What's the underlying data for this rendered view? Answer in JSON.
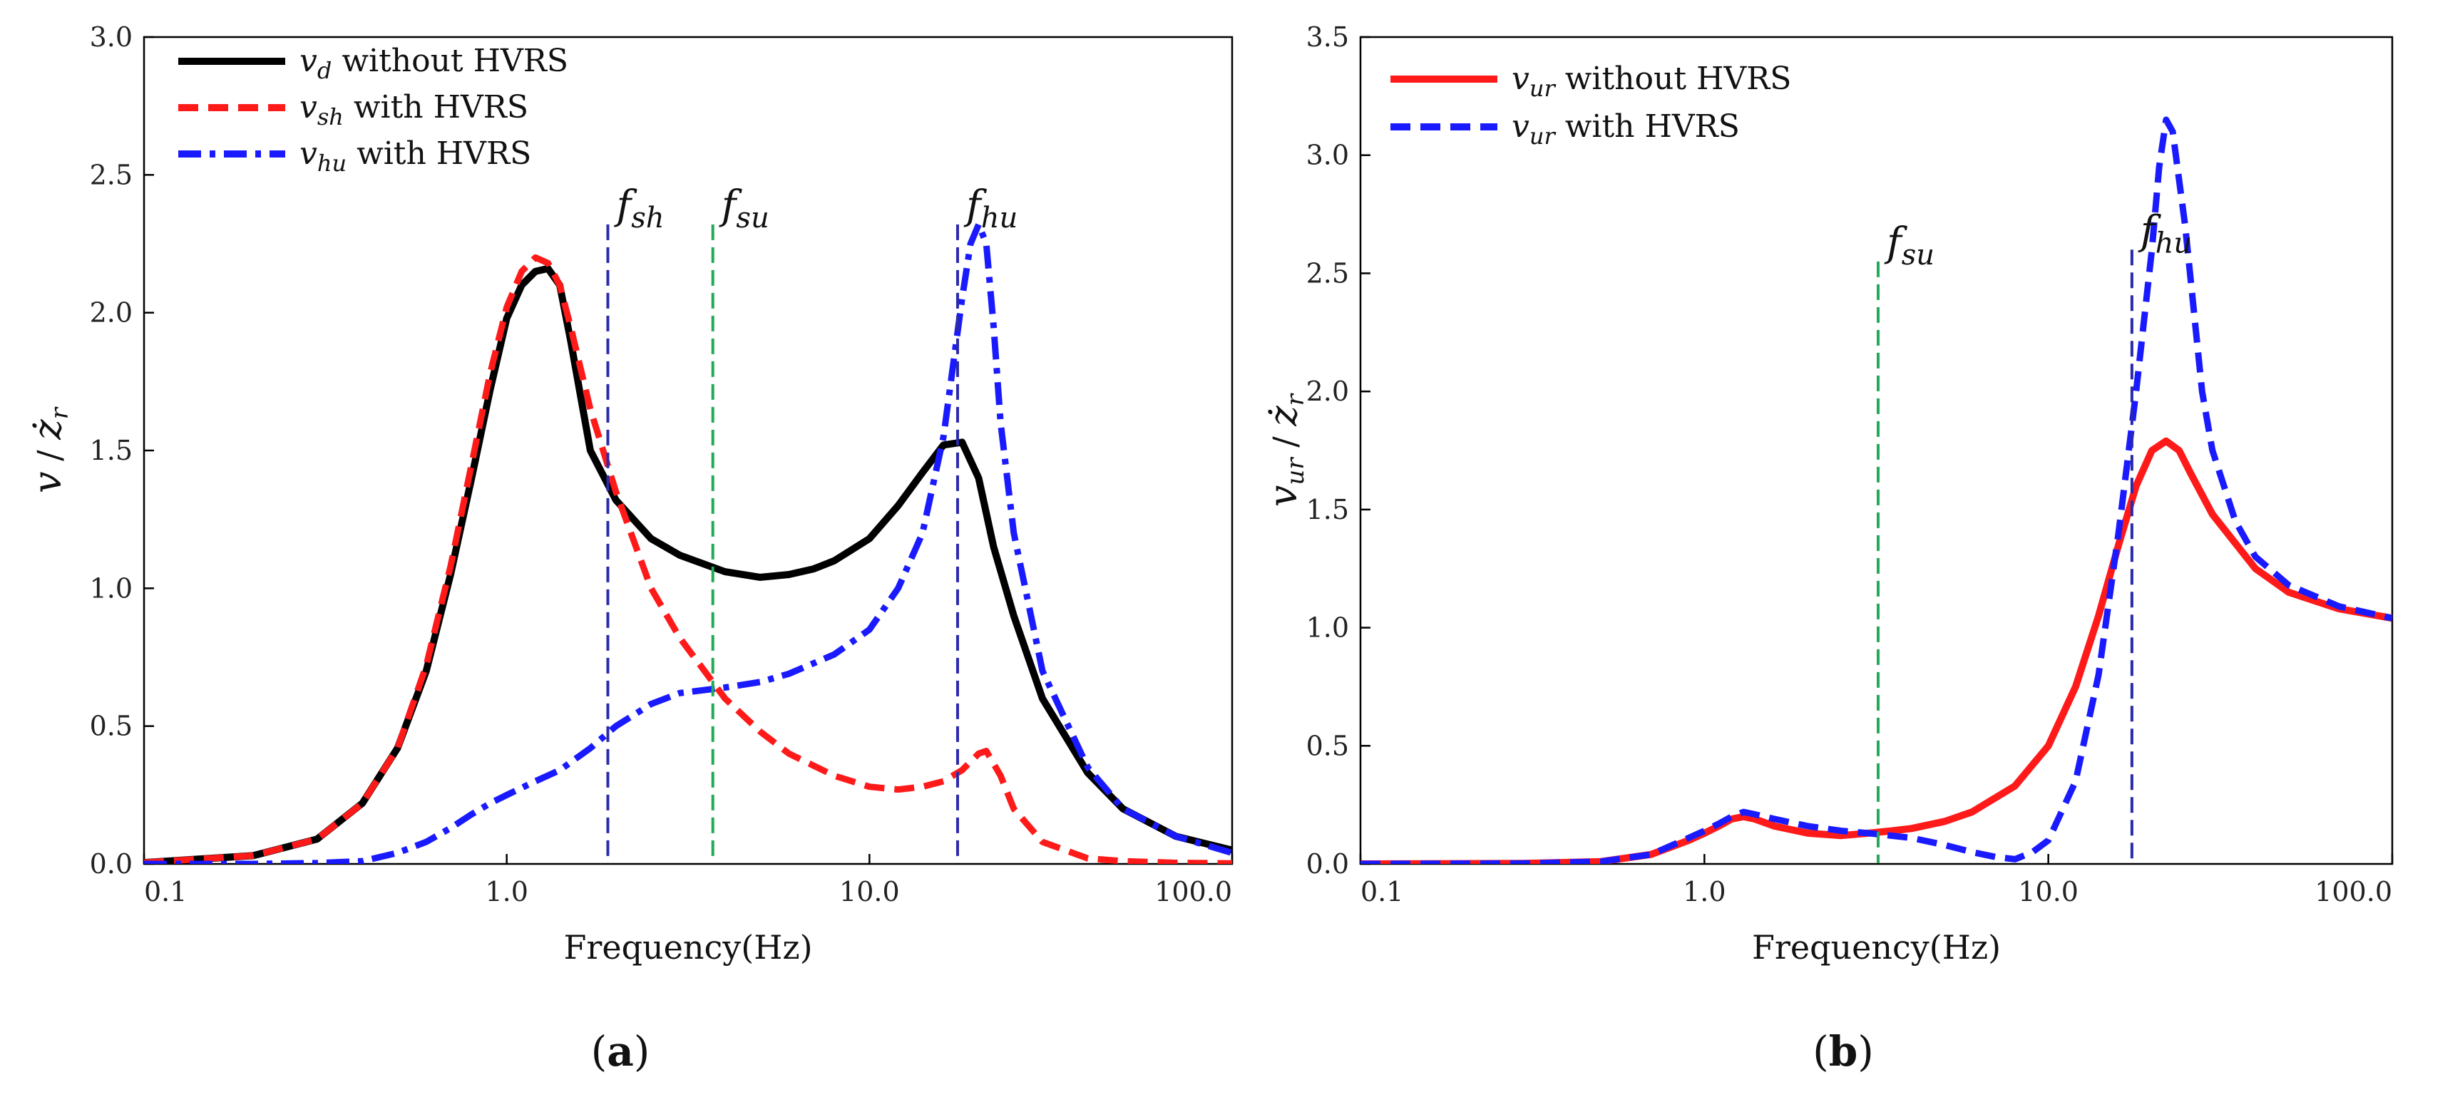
{
  "chart_data": [
    {
      "type": "line",
      "panel_label": "(a)",
      "panel_letter": "a",
      "xscale": "log",
      "xlim": [
        0.1,
        100.0
      ],
      "ylim": [
        0.0,
        3.0
      ],
      "xticks": [
        0.1,
        1.0,
        10.0,
        100.0
      ],
      "xtick_labels": [
        "0.1",
        "1.0",
        "10.0",
        "100.0"
      ],
      "yticks": [
        0.0,
        0.5,
        1.0,
        1.5,
        2.0,
        2.5,
        3.0
      ],
      "ytick_labels": [
        "0.0",
        "0.5",
        "1.0",
        "1.5",
        "2.0",
        "2.5",
        "3.0"
      ],
      "xlabel": "Frequency(Hz)",
      "ylabel": "v / ż_r",
      "ylabel_parts": {
        "main": "v",
        "slash": " / ",
        "z": "ż",
        "sub": "r"
      },
      "legend_position": "top-left",
      "series": [
        {
          "name": "v_d  without HVRS",
          "legend_math": "v",
          "legend_sub": "d",
          "legend_text": " without HVRS",
          "color": "#000000",
          "style": "solid",
          "x": [
            0.1,
            0.2,
            0.3,
            0.4,
            0.5,
            0.6,
            0.7,
            0.8,
            0.9,
            1.0,
            1.1,
            1.2,
            1.3,
            1.4,
            1.5,
            1.7,
            2.0,
            2.5,
            3.0,
            4.0,
            5.0,
            6.0,
            7.0,
            8.0,
            10.0,
            12.0,
            14.0,
            16.0,
            18.0,
            20.0,
            22.0,
            25.0,
            30.0,
            40.0,
            50.0,
            70.0,
            100.0
          ],
          "y": [
            0.005,
            0.03,
            0.09,
            0.22,
            0.42,
            0.7,
            1.05,
            1.4,
            1.72,
            1.98,
            2.1,
            2.15,
            2.16,
            2.1,
            1.9,
            1.5,
            1.32,
            1.18,
            1.12,
            1.06,
            1.04,
            1.05,
            1.07,
            1.1,
            1.18,
            1.3,
            1.42,
            1.52,
            1.53,
            1.4,
            1.15,
            0.9,
            0.6,
            0.33,
            0.2,
            0.1,
            0.05
          ]
        },
        {
          "name": "v_sh with HVRS",
          "legend_math": "v",
          "legend_sub": "sh",
          "legend_text": " with HVRS",
          "color": "#ff1a1a",
          "style": "dashed",
          "x": [
            0.1,
            0.2,
            0.3,
            0.4,
            0.5,
            0.6,
            0.7,
            0.8,
            0.9,
            1.0,
            1.1,
            1.2,
            1.3,
            1.4,
            1.5,
            1.7,
            2.0,
            2.5,
            3.0,
            4.0,
            5.0,
            6.0,
            8.0,
            10.0,
            12.0,
            14.0,
            16.0,
            18.0,
            20.0,
            21.0,
            23.0,
            25.0,
            30.0,
            40.0,
            50.0,
            70.0,
            100.0
          ],
          "y": [
            0.005,
            0.03,
            0.09,
            0.22,
            0.42,
            0.72,
            1.08,
            1.45,
            1.78,
            2.02,
            2.15,
            2.2,
            2.18,
            2.1,
            1.95,
            1.65,
            1.35,
            1.0,
            0.82,
            0.6,
            0.48,
            0.4,
            0.32,
            0.28,
            0.27,
            0.28,
            0.3,
            0.34,
            0.4,
            0.41,
            0.32,
            0.2,
            0.08,
            0.02,
            0.01,
            0.004,
            0.002
          ]
        },
        {
          "name": "v_hu with HVRS",
          "legend_math": "v",
          "legend_sub": "hu",
          "legend_text": " with HVRS",
          "color": "#1a1aff",
          "style": "dashdot",
          "x": [
            0.1,
            0.2,
            0.3,
            0.4,
            0.5,
            0.6,
            0.7,
            0.8,
            0.9,
            1.0,
            1.2,
            1.4,
            1.7,
            2.0,
            2.5,
            3.0,
            4.0,
            5.0,
            6.0,
            8.0,
            10.0,
            12.0,
            14.0,
            16.0,
            18.0,
            19.0,
            20.0,
            21.0,
            22.0,
            23.0,
            25.0,
            30.0,
            40.0,
            50.0,
            70.0,
            100.0
          ],
          "y": [
            0.0,
            0.0,
            0.003,
            0.01,
            0.04,
            0.08,
            0.13,
            0.18,
            0.22,
            0.25,
            0.3,
            0.34,
            0.42,
            0.5,
            0.58,
            0.62,
            0.64,
            0.66,
            0.69,
            0.76,
            0.85,
            1.0,
            1.2,
            1.55,
            2.05,
            2.25,
            2.32,
            2.25,
            1.95,
            1.6,
            1.2,
            0.7,
            0.35,
            0.2,
            0.1,
            0.04
          ]
        }
      ],
      "markers": [
        {
          "label": "f",
          "sub": "sh",
          "x": 1.9,
          "y_top": 2.32,
          "color": "#2a2aaa"
        },
        {
          "label": "f",
          "sub": "su",
          "x": 3.7,
          "y_top": 2.32,
          "color": "#22aa55"
        },
        {
          "label": "f",
          "sub": "hu",
          "x": 17.5,
          "y_top": 2.32,
          "color": "#2a2aaa"
        }
      ]
    },
    {
      "type": "line",
      "panel_label": "(b)",
      "panel_letter": "b",
      "xscale": "log",
      "xlim": [
        0.1,
        100.0
      ],
      "ylim": [
        0.0,
        3.5
      ],
      "xticks": [
        0.1,
        1.0,
        10.0,
        100.0
      ],
      "xtick_labels": [
        "0.1",
        "1.0",
        "10.0",
        "100.0"
      ],
      "yticks": [
        0.0,
        0.5,
        1.0,
        1.5,
        2.0,
        2.5,
        3.0,
        3.5
      ],
      "ytick_labels": [
        "0.0",
        "0.5",
        "1.0",
        "1.5",
        "2.0",
        "2.5",
        "3.0",
        "3.5"
      ],
      "xlabel": "Frequency(Hz)",
      "ylabel": "v_ur / ż_r",
      "ylabel_parts": {
        "main": "v",
        "main_sub": "ur",
        "slash": " / ",
        "z": "ż",
        "sub": "r"
      },
      "legend_position": "top-left",
      "series": [
        {
          "name": "v_ur without HVRS",
          "legend_math": "v",
          "legend_sub": "ur",
          "legend_text": " without HVRS",
          "color": "#ff1a1a",
          "style": "solid",
          "x": [
            0.1,
            0.3,
            0.5,
            0.7,
            0.9,
            1.0,
            1.1,
            1.2,
            1.3,
            1.4,
            1.6,
            2.0,
            2.5,
            3.0,
            3.5,
            4.0,
            5.0,
            6.0,
            8.0,
            10.0,
            12.0,
            14.0,
            16.0,
            18.0,
            20.0,
            22.0,
            24.0,
            26.0,
            30.0,
            40.0,
            50.0,
            70.0,
            100.0
          ],
          "y": [
            0.0,
            0.002,
            0.01,
            0.04,
            0.1,
            0.13,
            0.16,
            0.19,
            0.2,
            0.19,
            0.16,
            0.13,
            0.12,
            0.13,
            0.14,
            0.15,
            0.18,
            0.22,
            0.33,
            0.5,
            0.75,
            1.05,
            1.35,
            1.6,
            1.75,
            1.79,
            1.75,
            1.65,
            1.48,
            1.25,
            1.15,
            1.08,
            1.04
          ]
        },
        {
          "name": "v_ur with HVRS",
          "legend_math": "v",
          "legend_sub": "ur",
          "legend_text": " with HVRS",
          "color": "#1a1aff",
          "style": "dashed",
          "x": [
            0.1,
            0.3,
            0.5,
            0.7,
            0.9,
            1.0,
            1.1,
            1.2,
            1.3,
            1.4,
            1.6,
            2.0,
            2.5,
            3.0,
            4.0,
            5.0,
            6.0,
            7.0,
            8.0,
            9.0,
            10.0,
            12.0,
            14.0,
            16.0,
            18.0,
            20.0,
            21.0,
            22.0,
            23.0,
            25.0,
            28.0,
            30.0,
            35.0,
            40.0,
            50.0,
            70.0,
            100.0
          ],
          "y": [
            0.0,
            0.002,
            0.01,
            0.04,
            0.11,
            0.14,
            0.17,
            0.2,
            0.22,
            0.21,
            0.19,
            0.16,
            0.14,
            0.13,
            0.11,
            0.08,
            0.05,
            0.03,
            0.02,
            0.05,
            0.1,
            0.35,
            0.8,
            1.4,
            2.0,
            2.6,
            2.95,
            3.15,
            3.1,
            2.7,
            2.0,
            1.75,
            1.45,
            1.3,
            1.18,
            1.09,
            1.04
          ]
        }
      ],
      "markers": [
        {
          "label": "f",
          "sub": "su",
          "x": 3.2,
          "y_top": 2.55,
          "color": "#22aa55"
        },
        {
          "label": "f",
          "sub": "hu",
          "x": 17.5,
          "y_top": 2.6,
          "color": "#2a2aaa"
        }
      ]
    }
  ]
}
